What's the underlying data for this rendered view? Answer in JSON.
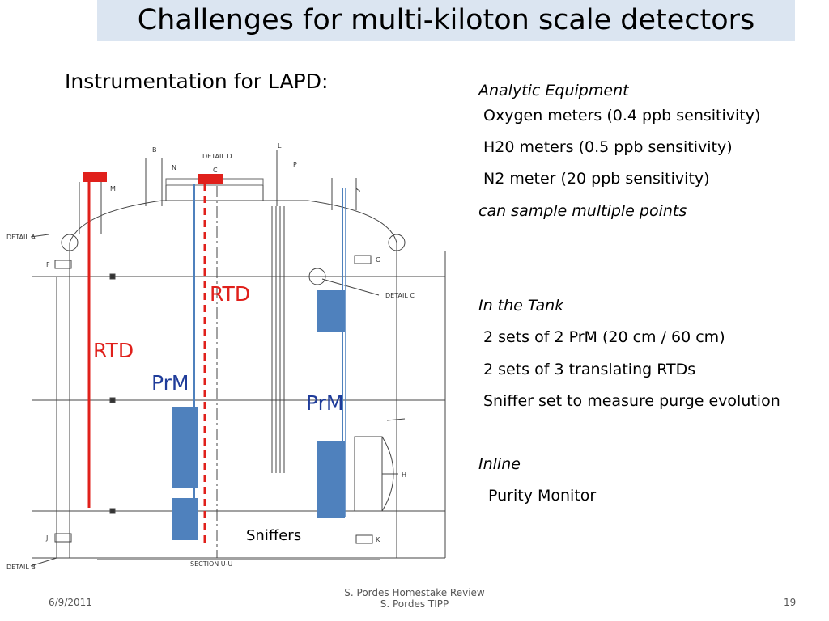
{
  "slide": {
    "title": "Challenges for multi-kiloton scale detectors",
    "subtitle": "Instrumentation for LAPD:",
    "right": {
      "analytic_heading": "Analytic Equipment",
      "analytic_items": [
        "Oxygen meters (0.4 ppb sensitivity)",
        "H20 meters (0.5 ppb sensitivity)",
        "N2 meter (20 ppb sensitivity)"
      ],
      "analytic_note": "can sample multiple points",
      "tank_heading": "In the Tank",
      "tank_items": [
        "2 sets of 2 PrM (20 cm / 60 cm)",
        "2 sets of 3 translating RTDs",
        "Sniffer set to measure purge evolution"
      ],
      "inline_heading": "Inline",
      "inline_items": [
        "Purity Monitor"
      ]
    },
    "diagram_labels": {
      "rtd_top": "RTD",
      "rtd_left": "RTD",
      "prm_left": "PrM",
      "prm_right": "PrM",
      "sniffers": "Sniffers",
      "detail_a": "DETAIL A",
      "detail_b": "DETAIL B",
      "detail_c": "DETAIL C",
      "detail_d": "DETAIL D",
      "section": "SECTION U-U",
      "letters": [
        "B",
        "C",
        "L",
        "N",
        "M",
        "P",
        "S",
        "F",
        "G",
        "H",
        "J",
        "K"
      ]
    },
    "footer": {
      "date": "6/9/2011",
      "center_line1": "S. Pordes Homestake Review",
      "center_line2": "S. Pordes  TIPP",
      "page": "19"
    },
    "colors": {
      "title_bar": "#dbe5f1",
      "rtd": "#e0201b",
      "prm": "#4f81bd",
      "label_blue": "#1f3c9a"
    }
  }
}
